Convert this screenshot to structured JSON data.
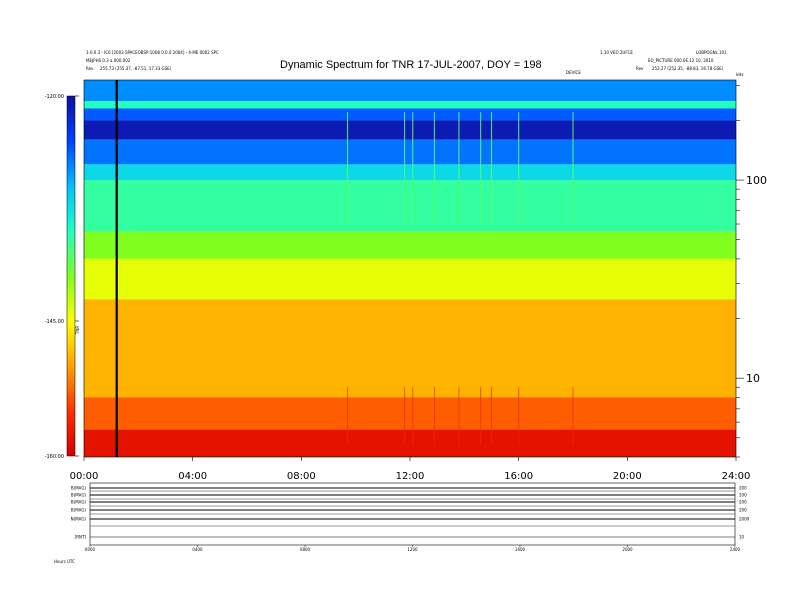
{
  "header": {
    "left_line1": "1-0.0.3 - IC6 [2003 SPACEOBSP:1008 0.0.0 2004] - 4-ME 0002 SPC",
    "left_line2": "MEJPHS 0.3 a 000.002",
    "left_rev": "Rev",
    "left_rev_value": "255.73 (255.37, -87.51, 17.33 GSE)",
    "right_line1": "1.10 VEO 2UFCE",
    "right_line1b": "LOBPOGNs.101",
    "right_line2": "EO_PICTURE 000.0E.12 10, 2010",
    "right_rev": "Rev",
    "right_rev_value": "252.27 (252.35, -88.83, 16.78 GSE)",
    "device": "DEVICE",
    "hz": "kHz"
  },
  "chart_data": {
    "type": "heatmap",
    "title": "Dynamic Spectrum for TNR 17-JUL-2007, DOY = 198",
    "x_tick_labels": [
      "00:00",
      "04:00",
      "08:00",
      "12:00",
      "16:00",
      "20:00",
      "24:00"
    ],
    "x_ticks_hours": [
      0,
      4,
      8,
      12,
      16,
      20,
      24
    ],
    "xlim_hours": [
      0,
      24
    ],
    "y_scale": "log",
    "y_tick_labels": [
      "100",
      "10"
    ],
    "y_ticks": [
      100,
      10
    ],
    "ylim": [
      4,
      320
    ],
    "colorbar_labels": [
      "-120.00",
      "-145.00",
      "-160.00"
    ],
    "colorbar_ticks": [
      -120,
      -145,
      -160
    ],
    "colorbar_range": [
      -160,
      -120
    ],
    "colorbar_unit": "TNR",
    "colorbar_colors": [
      "#1010a0",
      "#0040ff",
      "#00c0ff",
      "#20ffc0",
      "#80ff20",
      "#ffff00",
      "#ffa000",
      "#ff3000",
      "#d00000"
    ],
    "intensity_bands": [
      {
        "from_khz": 250,
        "to_khz": 320,
        "level": -128
      },
      {
        "from_khz": 230,
        "to_khz": 250,
        "level": -135
      },
      {
        "from_khz": 200,
        "to_khz": 230,
        "level": -126
      },
      {
        "from_khz": 160,
        "to_khz": 200,
        "level": -121
      },
      {
        "from_khz": 120,
        "to_khz": 160,
        "level": -127
      },
      {
        "from_khz": 100,
        "to_khz": 120,
        "level": -132
      },
      {
        "from_khz": 55,
        "to_khz": 100,
        "level": -136
      },
      {
        "from_khz": 40,
        "to_khz": 55,
        "level": -140
      },
      {
        "from_khz": 25,
        "to_khz": 40,
        "level": -144
      },
      {
        "from_khz": 8,
        "to_khz": 25,
        "level": -149
      },
      {
        "from_khz": 5.5,
        "to_khz": 8,
        "level": -153
      },
      {
        "from_khz": 4,
        "to_khz": 5.5,
        "level": -158
      }
    ],
    "bursts_hours": [
      9.7,
      11.8,
      12.1,
      12.9,
      13.8,
      14.6,
      15.0,
      16.0,
      18.0
    ],
    "data_gap_hour": 1.2
  },
  "footer": {
    "x_tick_labels": [
      "0000",
      "0400",
      "0800",
      "1200",
      "1600",
      "2000",
      "2400"
    ],
    "rows": [
      {
        "label": "B(MAG)",
        "right": "200"
      },
      {
        "label": "B(MAG)",
        "right": "200"
      },
      {
        "label": "B(MAG)",
        "right": "200"
      },
      {
        "label": "B(MAG)",
        "right": "200"
      },
      {
        "label": "N(MAG)",
        "right": "2000"
      },
      {
        "label": "[RNT]",
        "right": "10"
      }
    ],
    "axis_label": "Hours  UTC"
  }
}
